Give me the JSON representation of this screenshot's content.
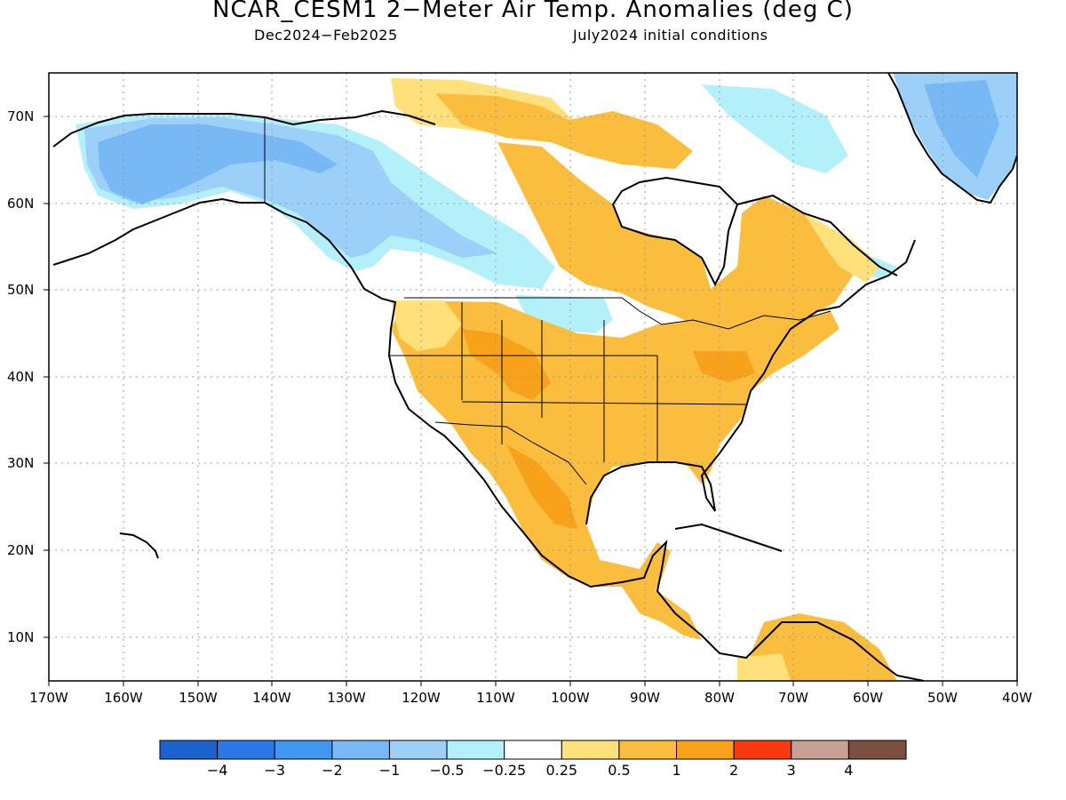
{
  "title": "NCAR_CESM1 2−Meter Air Temp. Anomalies (deg C)",
  "subtitle_left": "Dec2024−Feb2025",
  "subtitle_right": "July2024 initial conditions",
  "lat_labels": [
    "70N",
    "60N",
    "50N",
    "40N",
    "30N",
    "20N",
    "10N"
  ],
  "lon_labels": [
    "170W",
    "160W",
    "150W",
    "140W",
    "130W",
    "120W",
    "110W",
    "100W",
    "90W",
    "80W",
    "70W",
    "60W",
    "50W",
    "40W"
  ],
  "colorbar": {
    "colors": [
      "#1c62cc",
      "#2a78e6",
      "#4196f0",
      "#78b8f5",
      "#9dd0f8",
      "#b4f0fa",
      "#ffffff",
      "#ffe07a",
      "#fbbd3e",
      "#f7a21a",
      "#f93a10",
      "#c8a096",
      "#7b5040"
    ],
    "labels": [
      "−4",
      "−3",
      "−2",
      "−1",
      "−0.5",
      "−0.25",
      "0.25",
      "0.5",
      "1",
      "2",
      "3",
      "4"
    ]
  },
  "colors": {
    "cold_light": "#b4f0fa",
    "cold_mid": "#9dd0f8",
    "cold_strong": "#78b8f5",
    "warm_light": "#ffe07a",
    "warm_mid": "#fbbd3e",
    "warm_strong": "#f7a21a"
  }
}
